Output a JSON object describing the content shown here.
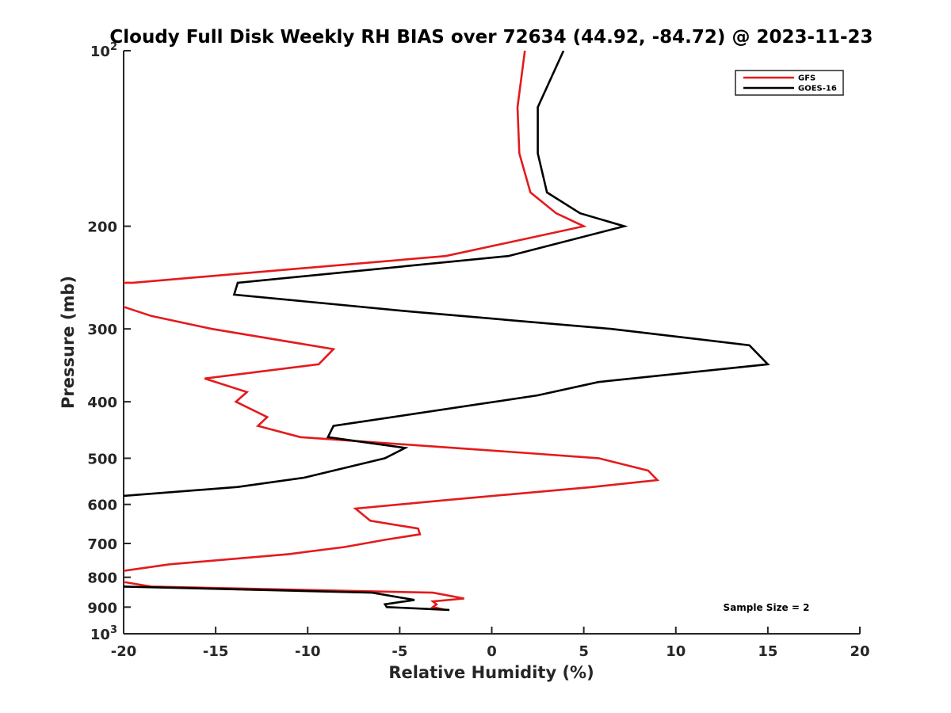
{
  "chart_data": {
    "type": "line",
    "title": "Cloudy Full Disk Weekly RH BIAS over 72634 (44.92, -84.72) @ 2023-11-23",
    "xlabel": "Relative Humidity (%)",
    "ylabel": "Pressure (mb)",
    "xlim": [
      -20,
      20
    ],
    "ylim": [
      100,
      1000
    ],
    "yscale": "log",
    "y_reversed": true,
    "grid": false,
    "legend_placement": "top-right",
    "xticks": [
      -20,
      -15,
      -10,
      -5,
      0,
      5,
      10,
      15,
      20
    ],
    "xtick_labels": [
      "-20",
      "-15",
      "-10",
      "-5",
      "0",
      "5",
      "10",
      "15",
      "20"
    ],
    "yticks": [
      100,
      200,
      300,
      400,
      500,
      600,
      700,
      800,
      900,
      1000
    ],
    "ytick_labels": [
      {
        "base": "10",
        "exp": "2"
      },
      {
        "base": "200",
        "exp": ""
      },
      {
        "base": "300",
        "exp": ""
      },
      {
        "base": "400",
        "exp": ""
      },
      {
        "base": "500",
        "exp": ""
      },
      {
        "base": "600",
        "exp": ""
      },
      {
        "base": "700",
        "exp": ""
      },
      {
        "base": "800",
        "exp": ""
      },
      {
        "base": "900",
        "exp": ""
      },
      {
        "base": "10",
        "exp": "3"
      }
    ],
    "annotation": "Sample Size = 2",
    "series": [
      {
        "name": "GFS",
        "color": "#e41a1c",
        "points": [
          {
            "x": 1.8,
            "y": 100
          },
          {
            "x": 1.4,
            "y": 125
          },
          {
            "x": 1.5,
            "y": 150
          },
          {
            "x": 2.1,
            "y": 175
          },
          {
            "x": 3.5,
            "y": 190
          },
          {
            "x": 5.0,
            "y": 200
          },
          {
            "x": -2.5,
            "y": 225
          },
          {
            "x": -19.5,
            "y": 250
          },
          {
            "x": -20.5,
            "y": 250
          },
          {
            "x": -20.0,
            "y": 275
          },
          {
            "x": -18.5,
            "y": 285
          },
          {
            "x": -15.2,
            "y": 300
          },
          {
            "x": -8.6,
            "y": 325
          },
          {
            "x": -9.4,
            "y": 345
          },
          {
            "x": -15.6,
            "y": 365
          },
          {
            "x": -13.3,
            "y": 385
          },
          {
            "x": -13.9,
            "y": 400
          },
          {
            "x": -12.2,
            "y": 425
          },
          {
            "x": -12.7,
            "y": 440
          },
          {
            "x": -10.4,
            "y": 460
          },
          {
            "x": 2.0,
            "y": 490
          },
          {
            "x": 5.8,
            "y": 500
          },
          {
            "x": 8.5,
            "y": 525
          },
          {
            "x": 9.0,
            "y": 545
          },
          {
            "x": 5.5,
            "y": 560
          },
          {
            "x": -2.5,
            "y": 590
          },
          {
            "x": -7.4,
            "y": 610
          },
          {
            "x": -6.6,
            "y": 640
          },
          {
            "x": -4.0,
            "y": 660
          },
          {
            "x": -3.9,
            "y": 675
          },
          {
            "x": -5.8,
            "y": 690
          },
          {
            "x": -8.0,
            "y": 710
          },
          {
            "x": -11.0,
            "y": 730
          },
          {
            "x": -17.5,
            "y": 760
          },
          {
            "x": -20.0,
            "y": 780
          },
          {
            "x": -20.5,
            "y": 780
          },
          {
            "x": -20.0,
            "y": 815
          },
          {
            "x": -18.5,
            "y": 830
          },
          {
            "x": -3.2,
            "y": 850
          },
          {
            "x": -1.5,
            "y": 870
          },
          {
            "x": -3.2,
            "y": 880
          },
          {
            "x": -3.0,
            "y": 890
          },
          {
            "x": -3.2,
            "y": 900
          },
          {
            "x": -2.5,
            "y": 910
          }
        ]
      },
      {
        "name": "GOES-16",
        "color": "#000000",
        "points": [
          {
            "x": 3.9,
            "y": 100
          },
          {
            "x": 2.5,
            "y": 125
          },
          {
            "x": 2.5,
            "y": 150
          },
          {
            "x": 3.0,
            "y": 175
          },
          {
            "x": 4.8,
            "y": 190
          },
          {
            "x": 7.2,
            "y": 200
          },
          {
            "x": 0.9,
            "y": 225
          },
          {
            "x": -13.8,
            "y": 250
          },
          {
            "x": -14.0,
            "y": 262
          },
          {
            "x": -4.5,
            "y": 280
          },
          {
            "x": 6.5,
            "y": 300
          },
          {
            "x": 14.0,
            "y": 320
          },
          {
            "x": 15.0,
            "y": 345
          },
          {
            "x": 5.8,
            "y": 370
          },
          {
            "x": 2.5,
            "y": 390
          },
          {
            "x": -8.6,
            "y": 440
          },
          {
            "x": -8.9,
            "y": 460
          },
          {
            "x": -4.7,
            "y": 480
          },
          {
            "x": -5.8,
            "y": 500
          },
          {
            "x": -10.2,
            "y": 540
          },
          {
            "x": -13.8,
            "y": 560
          },
          {
            "x": -20.0,
            "y": 580
          },
          {
            "x": -20.5,
            "y": 580
          },
          {
            "x": -20.5,
            "y": 830
          },
          {
            "x": -20.0,
            "y": 830
          },
          {
            "x": -6.5,
            "y": 850
          },
          {
            "x": -4.2,
            "y": 875
          },
          {
            "x": -5.8,
            "y": 890
          },
          {
            "x": -5.7,
            "y": 900
          },
          {
            "x": -2.3,
            "y": 910
          }
        ]
      }
    ]
  }
}
